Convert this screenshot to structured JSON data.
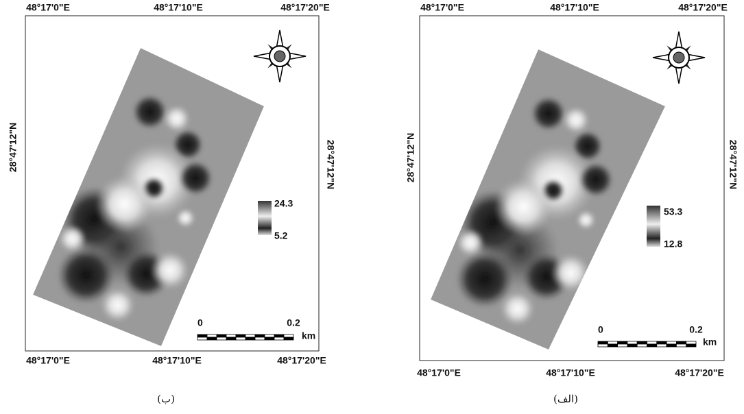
{
  "panels": [
    {
      "top_labels": [
        "48°17'0\"E",
        "48°17'10\"E",
        "48°17'20\"E"
      ],
      "bottom_labels": [
        "48°17'0\"E",
        "48°17'10\"E",
        "48°17'20\"E"
      ],
      "left_label": "28°47'12\"N",
      "right_label": "28°47'12\"N",
      "legend_max": "24.3",
      "legend_min": "5.2",
      "scale_start": "0",
      "scale_end": "0.2",
      "scale_unit": "km",
      "caption": "(ب)"
    },
    {
      "top_labels": [
        "48°17'0\"E",
        "48°17'10\"E",
        "48°17'20\"E"
      ],
      "bottom_labels": [
        "48°17'0\"E",
        "48°17'10\"E",
        "48°17'20\"E"
      ],
      "left_label": "28°47'12\"N",
      "right_label": "28°47'12\"N",
      "legend_max": "53.3",
      "legend_min": "12.8",
      "scale_start": "0",
      "scale_end": "0.2",
      "scale_unit": "km",
      "caption": "(الف)"
    }
  ]
}
